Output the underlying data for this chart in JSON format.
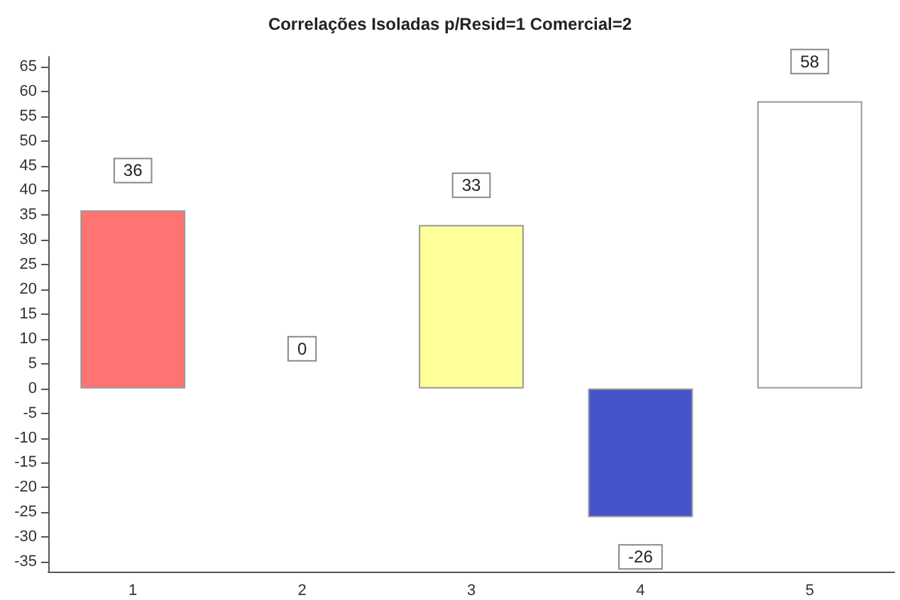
{
  "chart_data": {
    "type": "bar",
    "title": "Correlações Isoladas p/Resid=1 Comercial=2",
    "categories": [
      "1",
      "2",
      "3",
      "4",
      "5"
    ],
    "values": [
      36,
      0,
      33,
      -26,
      58
    ],
    "colors": [
      "#ff7373",
      "#ffffb0",
      "#ffff99",
      "#4455cc",
      "#ffffff"
    ],
    "ylim": [
      -37,
      67
    ],
    "yticks": [
      -35,
      -30,
      -25,
      -20,
      -15,
      -10,
      -5,
      0,
      5,
      10,
      15,
      20,
      25,
      30,
      35,
      40,
      45,
      50,
      55,
      60,
      65
    ],
    "data_labels": true,
    "grid": false
  }
}
